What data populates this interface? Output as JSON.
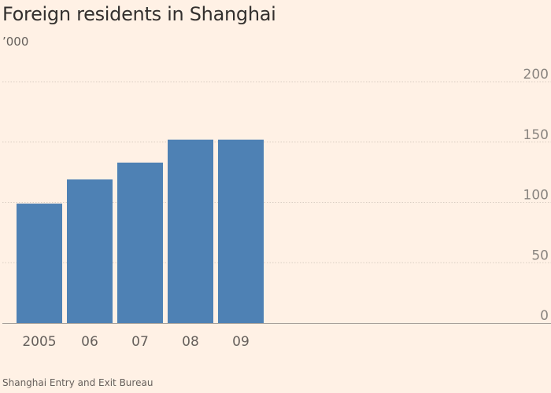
{
  "chart_data": {
    "type": "bar",
    "title": "Foreign residents in Shanghai",
    "ylabel": "’000",
    "xlabel": "",
    "categories": [
      "2005",
      "06",
      "07",
      "08",
      "09"
    ],
    "values": [
      99,
      119,
      133,
      152,
      152
    ],
    "ylim": [
      0,
      200
    ],
    "yticks": [
      0,
      50,
      100,
      150,
      200
    ],
    "grid": true,
    "bar_color": "#4e81b4",
    "source": "Shanghai Entry and Exit Bureau"
  }
}
